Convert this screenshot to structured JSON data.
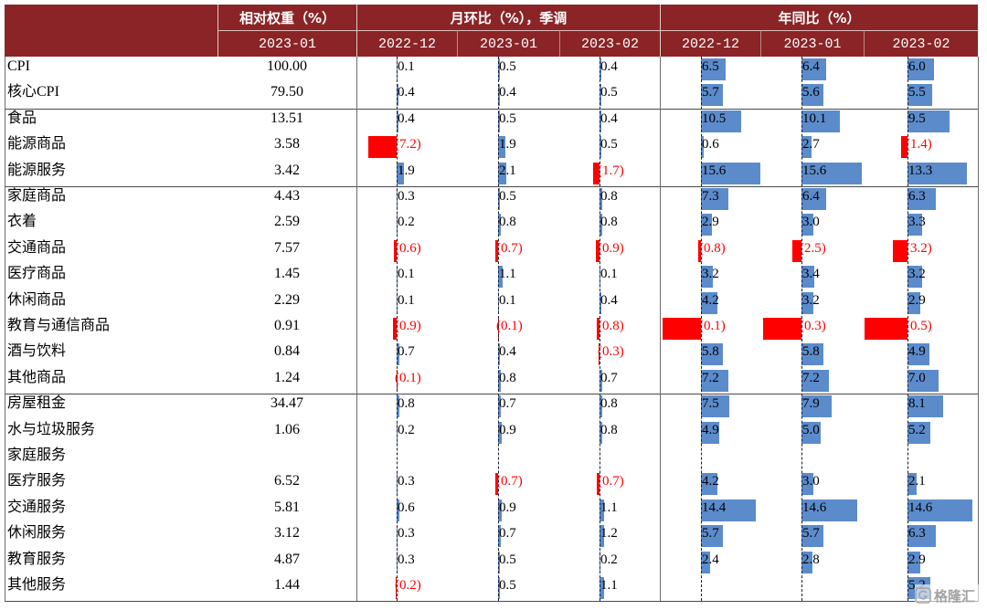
{
  "colors": {
    "header_bg": "#8B2426",
    "header_text": "#FFFFFF",
    "positive_bar": "#5B8BCB",
    "negative_bar": "#FF0000",
    "positive_text": "#000000",
    "negative_text": "#FF0000"
  },
  "watermark": {
    "logo_mark": "G",
    "logo_icon": "gelonghui-logo-icon",
    "text": "格隆汇"
  },
  "chart_data": {
    "type": "table",
    "header": {
      "weight": "相对权重（%）",
      "mom": "月环比（%），季调",
      "yoy": "年同比（%）"
    },
    "subheader": {
      "weight": "2023-01",
      "mom": [
        "2022-12",
        "2023-01",
        "2023-02"
      ],
      "yoy": [
        "2022-12",
        "2023-01",
        "2023-02"
      ]
    },
    "groups": [
      [
        {
          "label": "CPI",
          "weight": "100.00",
          "mom": [
            "0.1",
            "0.5",
            "0.4"
          ],
          "yoy": [
            "6.5",
            "6.4",
            "6.0"
          ]
        },
        {
          "label": "核心CPI",
          "weight": "79.50",
          "mom": [
            "0.4",
            "0.4",
            "0.5"
          ],
          "yoy": [
            "5.7",
            "5.6",
            "5.5"
          ]
        }
      ],
      [
        {
          "label": "食品",
          "weight": "13.51",
          "mom": [
            "0.4",
            "0.5",
            "0.4"
          ],
          "yoy": [
            "10.5",
            "10.1",
            "9.5"
          ]
        },
        {
          "label": "能源商品",
          "weight": "3.58",
          "mom": [
            "(7.2)",
            "1.9",
            "0.5"
          ],
          "yoy": [
            "0.6",
            "2.7",
            "(1.4)"
          ]
        },
        {
          "label": "能源服务",
          "weight": "3.42",
          "mom": [
            "1.9",
            "2.1",
            "(1.7)"
          ],
          "yoy": [
            "15.6",
            "15.6",
            "13.3"
          ]
        }
      ],
      [
        {
          "label": "家庭商品",
          "weight": "4.43",
          "mom": [
            "0.3",
            "0.5",
            "0.8"
          ],
          "yoy": [
            "7.3",
            "6.4",
            "6.3"
          ]
        },
        {
          "label": "衣着",
          "weight": "2.59",
          "mom": [
            "0.2",
            "0.8",
            "0.8"
          ],
          "yoy": [
            "2.9",
            "3.0",
            "3.3"
          ]
        },
        {
          "label": "交通商品",
          "weight": "7.57",
          "mom": [
            "(0.6)",
            "(0.7)",
            "(0.9)"
          ],
          "yoy": [
            "(0.8)",
            "(2.5)",
            "(3.2)"
          ]
        },
        {
          "label": "医疗商品",
          "weight": "1.45",
          "mom": [
            "0.1",
            "1.1",
            "0.1"
          ],
          "yoy": [
            "3.2",
            "3.4",
            "3.2"
          ]
        },
        {
          "label": "休闲商品",
          "weight": "2.29",
          "mom": [
            "0.1",
            "0.1",
            "0.4"
          ],
          "yoy": [
            "4.2",
            "3.2",
            "2.9"
          ]
        },
        {
          "label": "教育与通信商品",
          "weight": "0.91",
          "mom": [
            "(0.9)",
            "(0.1)",
            "(0.8)"
          ],
          "yoy": [
            "(0.1)",
            "(0.3)",
            "(0.5)"
          ],
          "yoy_bar": [
            -10.0,
            -10.0,
            -9.7
          ]
        },
        {
          "label": "酒与饮料",
          "weight": "0.84",
          "mom": [
            "0.7",
            "0.4",
            "(0.3)"
          ],
          "yoy": [
            "5.8",
            "5.8",
            "4.9"
          ]
        },
        {
          "label": "其他商品",
          "weight": "1.24",
          "mom": [
            "(0.1)",
            "0.8",
            "0.7"
          ],
          "yoy": [
            "7.2",
            "7.2",
            "7.0"
          ]
        }
      ],
      [
        {
          "label": "房屋租金",
          "weight": "34.47",
          "mom": [
            "0.8",
            "0.7",
            "0.8"
          ],
          "yoy": [
            "7.5",
            "7.9",
            "8.1"
          ]
        },
        {
          "label": "水与垃圾服务",
          "weight": "1.06",
          "mom": [
            "0.2",
            "0.9",
            "0.8"
          ],
          "yoy": [
            "4.9",
            "5.0",
            "5.2"
          ]
        },
        {
          "label": "家庭服务",
          "weight": "",
          "mom": [
            "",
            "",
            ""
          ],
          "yoy": [
            "",
            "",
            ""
          ]
        },
        {
          "label": "医疗服务",
          "weight": "6.52",
          "mom": [
            "0.3",
            "(0.7)",
            "(0.7)"
          ],
          "yoy": [
            "4.2",
            "3.0",
            "2.1"
          ]
        },
        {
          "label": "交通服务",
          "weight": "5.81",
          "mom": [
            "0.6",
            "0.9",
            "1.1"
          ],
          "yoy": [
            "14.4",
            "14.6",
            "14.6"
          ]
        },
        {
          "label": "休闲服务",
          "weight": "3.12",
          "mom": [
            "0.3",
            "0.7",
            "1.2"
          ],
          "yoy": [
            "5.7",
            "5.7",
            "6.3"
          ]
        },
        {
          "label": "教育服务",
          "weight": "4.87",
          "mom": [
            "0.3",
            "0.5",
            "0.2"
          ],
          "yoy": [
            "2.4",
            "2.8",
            "2.9"
          ]
        },
        {
          "label": "其他服务",
          "weight": "1.44",
          "mom": [
            "(0.2)",
            "0.5",
            "1.1"
          ],
          "yoy": [
            "",
            "",
            "5.2"
          ]
        }
      ]
    ]
  }
}
